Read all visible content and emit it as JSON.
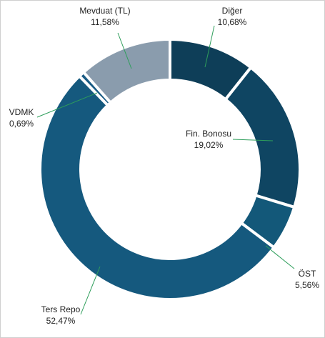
{
  "chart_data": {
    "type": "donut",
    "categories": [
      "Diğer",
      "Fin. Bonosu",
      "ÖST",
      "Ters Repo",
      "VDMK",
      "Mevduat (TL)"
    ],
    "values": [
      10.68,
      19.02,
      5.56,
      52.47,
      0.69,
      11.58
    ],
    "value_labels": [
      "10,68%",
      "19,02%",
      "5,56%",
      "52,47%",
      "0,69%",
      "11,58%"
    ],
    "colors": [
      "#0e3e58",
      "#0f4562",
      "#135879",
      "#15597e",
      "#1a5c85",
      "#8a9cad"
    ]
  }
}
